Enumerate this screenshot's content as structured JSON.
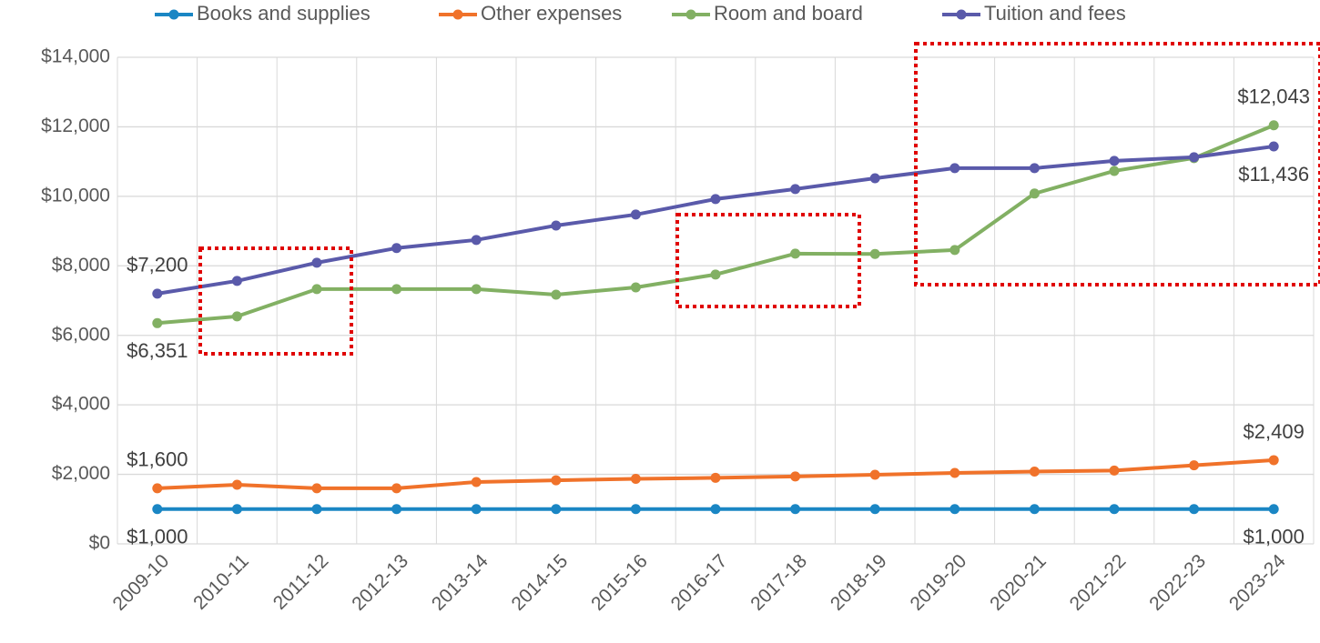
{
  "chart_data": {
    "type": "line",
    "categories": [
      "2009-10",
      "2010-11",
      "2011-12",
      "2012-13",
      "2013-14",
      "2014-15",
      "2015-16",
      "2016-17",
      "2017-18",
      "2018-19",
      "2019-20",
      "2020-21",
      "2021-22",
      "2022-23",
      "2023-24"
    ],
    "series": [
      {
        "name": "Books and supplies",
        "color": "#1a86c4",
        "values": [
          1000,
          1000,
          1000,
          1000,
          1000,
          1000,
          1000,
          1000,
          1000,
          1000,
          1000,
          1000,
          1000,
          1000,
          1000
        ],
        "value_labels": [
          "$1,000",
          null,
          null,
          null,
          null,
          null,
          null,
          null,
          null,
          null,
          null,
          null,
          null,
          null,
          "$1,000"
        ]
      },
      {
        "name": "Other expenses",
        "color": "#f0722a",
        "values": [
          1600,
          1700,
          1600,
          1600,
          1780,
          1830,
          1870,
          1900,
          1940,
          1990,
          2040,
          2080,
          2110,
          2260,
          2409
        ],
        "value_labels": [
          "$1,600",
          null,
          null,
          null,
          null,
          null,
          null,
          null,
          null,
          null,
          null,
          null,
          null,
          null,
          "$2,409"
        ]
      },
      {
        "name": "Room and board",
        "color": "#82b063",
        "values": [
          6351,
          6545,
          7330,
          7330,
          7330,
          7170,
          7380,
          7750,
          8350,
          8340,
          8455,
          10080,
          10730,
          11100,
          12043
        ],
        "value_labels": [
          "$6,351",
          null,
          null,
          null,
          null,
          null,
          null,
          null,
          null,
          null,
          null,
          null,
          null,
          null,
          "$12,043"
        ]
      },
      {
        "name": "Tuition and fees",
        "color": "#5a5aaa",
        "values": [
          7200,
          7565,
          8090,
          8510,
          8745,
          9160,
          9475,
          9920,
          10210,
          10520,
          10810,
          10810,
          11020,
          11125,
          11436
        ],
        "value_labels": [
          "$7,200",
          null,
          null,
          null,
          null,
          null,
          null,
          null,
          null,
          null,
          null,
          null,
          null,
          null,
          "$11,436"
        ]
      }
    ],
    "ylim": [
      0,
      14000
    ],
    "yticks": [
      {
        "value": 0,
        "label": "$0"
      },
      {
        "value": 2000,
        "label": "$2,000"
      },
      {
        "value": 4000,
        "label": "$4,000"
      },
      {
        "value": 6000,
        "label": "$6,000"
      },
      {
        "value": 8000,
        "label": "$8,000"
      },
      {
        "value": 10000,
        "label": "$10,000"
      },
      {
        "value": 12000,
        "label": "$12,000"
      },
      {
        "value": 14000,
        "label": "$14,000"
      }
    ],
    "grid": true,
    "legend": "top"
  }
}
